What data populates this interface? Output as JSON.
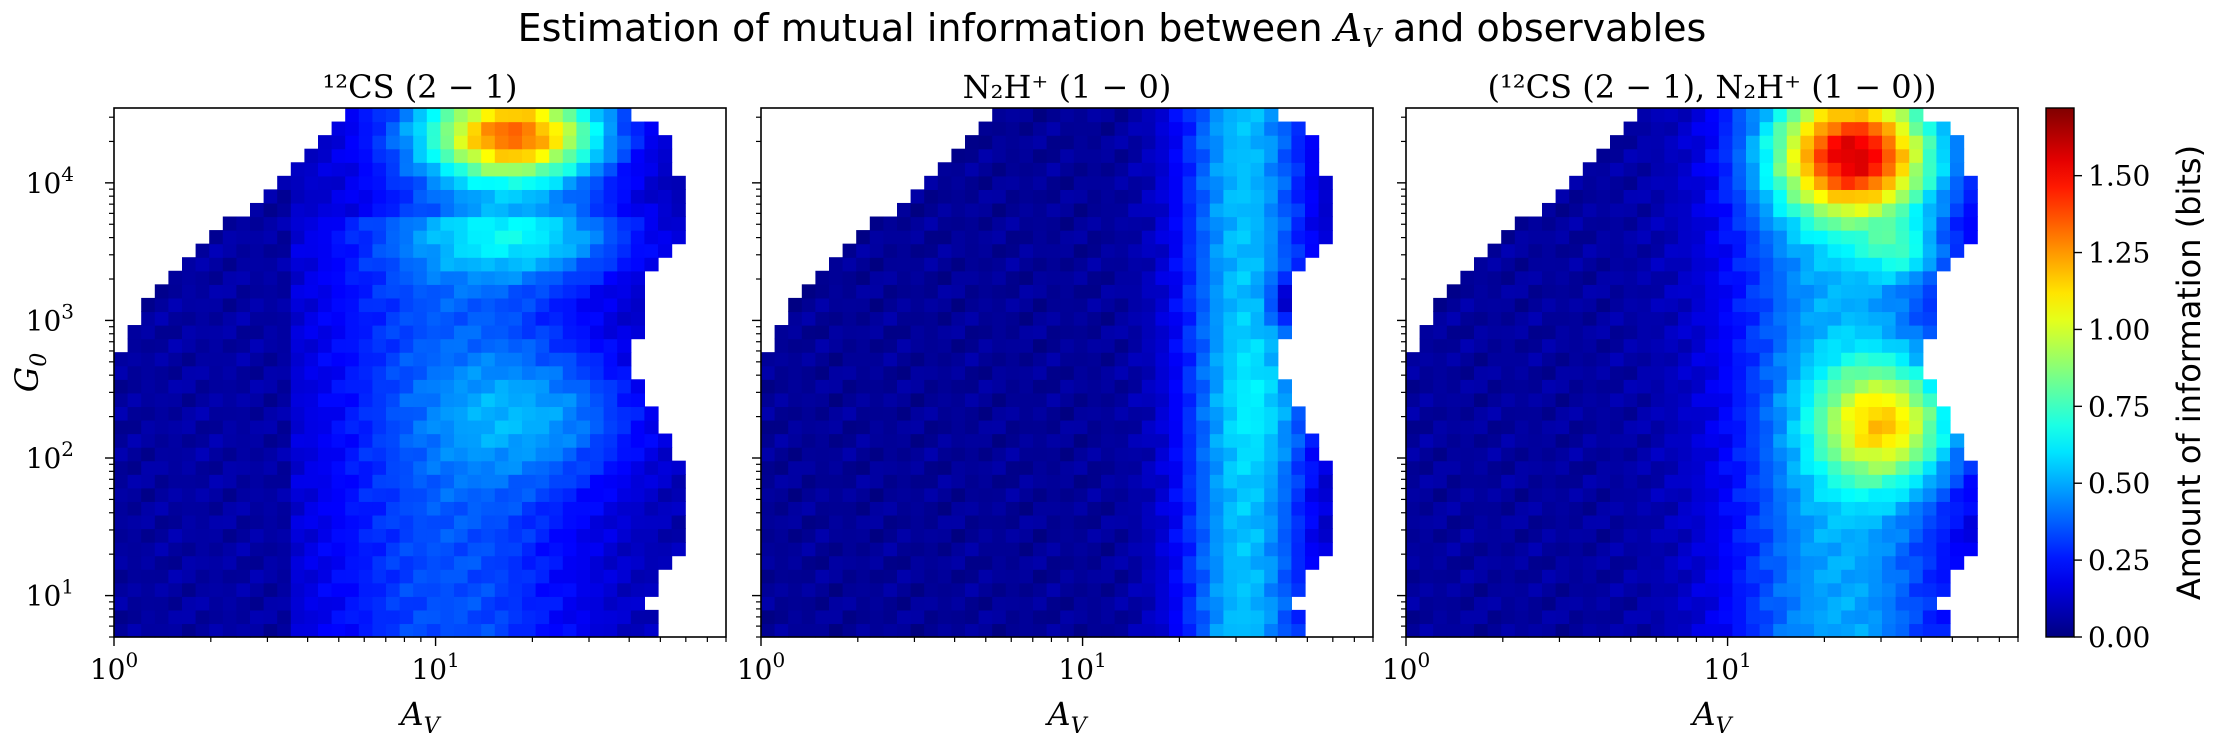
{
  "chart_data": {
    "type": "heatmap",
    "title": "Estimation of mutual information between A_V and observables",
    "title_parts": {
      "prefix": "Estimation of mutual information between ",
      "symbol": "A",
      "symbol_sub": "V",
      "suffix": " and observables"
    },
    "colorbar": {
      "label": "Amount of information (bits)",
      "range": [
        0,
        1.72
      ],
      "ticks": [
        "0.00",
        "0.25",
        "0.50",
        "0.75",
        "1.00",
        "1.25",
        "1.50"
      ],
      "tick_values": [
        0,
        0.25,
        0.5,
        0.75,
        1.0,
        1.25,
        1.5
      ],
      "colormap": "jet"
    },
    "x_axis": {
      "label": "A_V",
      "label_text": "A",
      "label_sub": "V",
      "scale": "log",
      "range": [
        1,
        80
      ],
      "ticks": [
        {
          "value": 1,
          "label": "10",
          "exp": "0"
        },
        {
          "value": 10,
          "label": "10",
          "exp": "1"
        }
      ]
    },
    "y_axis": {
      "label": "G_0",
      "label_text": "G",
      "label_sub": "0",
      "scale": "log",
      "range": [
        5,
        35000
      ],
      "ticks": [
        {
          "value": 10,
          "label": "10",
          "exp": "1"
        },
        {
          "value": 100,
          "label": "10",
          "exp": "2"
        },
        {
          "value": 1000,
          "label": "10",
          "exp": "3"
        },
        {
          "value": 10000,
          "label": "10",
          "exp": "4"
        }
      ]
    },
    "panels": [
      {
        "id": "cs",
        "title": "¹²CS (2 − 1)",
        "features": [
          [
            0.02,
            0.02,
            0.2,
            3.0
          ],
          [
            0.36,
            0.9,
            0.55,
            0.18
          ],
          [
            0.32,
            0.93,
            0.55,
            0.12
          ],
          [
            0.28,
            0.86,
            0.45,
            0.2
          ],
          [
            0.3,
            0.95,
            1.1,
            0.24
          ],
          [
            0.24,
            0.93,
            1.35,
            0.14
          ],
          [
            0.78,
            0.4,
            0.38,
            0.14
          ],
          [
            0.76,
            0.3,
            0.42,
            0.12
          ]
        ]
      },
      {
        "id": "n2h",
        "title": "N₂H⁺ (1 − 0)",
        "features": [
          [
            0.02,
            0.02,
            0.1,
            3.0
          ],
          [
            0.4,
            1.2,
            0.62,
            0.12
          ],
          [
            0.4,
            0.65,
            0.58,
            0.12
          ],
          [
            0.4,
            0.9,
            0.44,
            0.06
          ],
          [
            0.4,
            0.45,
            0.56,
            0.12
          ],
          [
            0.4,
            0.15,
            0.4,
            0.12
          ],
          [
            0.2,
            0.9,
            0.1,
            0.1
          ]
        ]
      },
      {
        "id": "both",
        "title": "(¹²CS (2 − 1), N₂H⁺ (1 − 0))",
        "features": [
          [
            0.02,
            0.02,
            0.15,
            3.0
          ],
          [
            0.36,
            1.0,
            0.65,
            0.22
          ],
          [
            0.3,
            0.7,
            0.85,
            0.12
          ],
          [
            0.38,
            0.42,
            0.92,
            0.14
          ],
          [
            0.36,
            0.7,
            1.42,
            0.1
          ],
          [
            0.26,
            0.8,
            1.45,
            0.14
          ],
          [
            0.22,
            0.96,
            1.65,
            0.12
          ],
          [
            0.4,
            0.15,
            0.5,
            0.12
          ]
        ]
      }
    ]
  }
}
